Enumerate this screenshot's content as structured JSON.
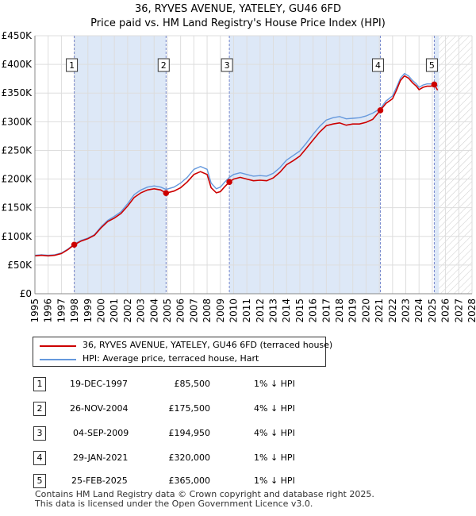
{
  "title": {
    "line1": "36, RYVES AVENUE, YATELEY, GU46 6FD",
    "line2": "Price paid vs. HM Land Registry's House Price Index (HPI)"
  },
  "colors": {
    "price_line": "#cc0000",
    "hpi_line": "#6699dd",
    "marker": "#cc0000",
    "highlight": "#dde8f7",
    "grid": "#dddddd",
    "sale_vline": "#7788cc"
  },
  "legend": {
    "price_label": "36, RYVES AVENUE, YATELEY, GU46 6FD (terraced house)",
    "hpi_label": "HPI: Average price, terraced house, Hart"
  },
  "sales": [
    {
      "num": "1",
      "date": "19-DEC-1997",
      "price": "£85,500",
      "hpi": "1% ↓ HPI"
    },
    {
      "num": "2",
      "date": "26-NOV-2004",
      "price": "£175,500",
      "hpi": "4% ↓ HPI"
    },
    {
      "num": "3",
      "date": "04-SEP-2009",
      "price": "£194,950",
      "hpi": "4% ↓ HPI"
    },
    {
      "num": "4",
      "date": "29-JAN-2021",
      "price": "£320,000",
      "hpi": "1% ↓ HPI"
    },
    {
      "num": "5",
      "date": "25-FEB-2025",
      "price": "£365,000",
      "hpi": "1% ↓ HPI"
    }
  ],
  "footer": {
    "line1": "Contains HM Land Registry data © Crown copyright and database right 2025.",
    "line2": "This data is licensed under the Open Government Licence v3.0."
  },
  "chart_data": {
    "type": "line",
    "title": "Price paid vs. HM Land Registry's House Price Index (HPI)",
    "xlabel": "",
    "ylabel": "",
    "xlim": [
      1995,
      2028
    ],
    "ylim": [
      0,
      450000
    ],
    "x_ticks": [
      "1995",
      "1996",
      "1997",
      "1998",
      "1999",
      "2000",
      "2001",
      "2002",
      "2003",
      "2004",
      "2005",
      "2006",
      "2007",
      "2008",
      "2009",
      "2010",
      "2011",
      "2012",
      "2013",
      "2014",
      "2015",
      "2016",
      "2017",
      "2018",
      "2019",
      "2020",
      "2021",
      "2022",
      "2023",
      "2024",
      "2025",
      "2026",
      "2027",
      "2028"
    ],
    "y_ticks": [
      {
        "value": 0,
        "label": "£0"
      },
      {
        "value": 50000,
        "label": "£50K"
      },
      {
        "value": 100000,
        "label": "£100K"
      },
      {
        "value": 150000,
        "label": "£150K"
      },
      {
        "value": 200000,
        "label": "£200K"
      },
      {
        "value": 250000,
        "label": "£250K"
      },
      {
        "value": 300000,
        "label": "£300K"
      },
      {
        "value": 350000,
        "label": "£350K"
      },
      {
        "value": 400000,
        "label": "£400K"
      },
      {
        "value": 450000,
        "label": "£450K"
      }
    ],
    "grid": true,
    "hatched_from": 2025.5,
    "sale_markers": [
      {
        "label": "1",
        "x": 1997.97,
        "y": 85500
      },
      {
        "label": "2",
        "x": 2004.9,
        "y": 175500
      },
      {
        "label": "3",
        "x": 2009.68,
        "y": 194950
      },
      {
        "label": "4",
        "x": 2021.08,
        "y": 320000
      },
      {
        "label": "5",
        "x": 2025.15,
        "y": 365000
      }
    ],
    "series": [
      {
        "name": "36, RYVES AVENUE, YATELEY, GU46 6FD (terraced house)",
        "x": [
          1995,
          1995.5,
          1996,
          1996.5,
          1997,
          1997.5,
          1997.97,
          1998.5,
          1999,
          1999.5,
          2000,
          2000.5,
          2001,
          2001.5,
          2002,
          2002.5,
          2003,
          2003.5,
          2004,
          2004.5,
          2004.9,
          2005.5,
          2006,
          2006.5,
          2007,
          2007.5,
          2008,
          2008.3,
          2008.7,
          2009,
          2009.3,
          2009.68,
          2010,
          2010.5,
          2011,
          2011.5,
          2012,
          2012.5,
          2013,
          2013.5,
          2014,
          2014.5,
          2015,
          2015.5,
          2016,
          2016.5,
          2017,
          2017.5,
          2018,
          2018.5,
          2019,
          2019.5,
          2020,
          2020.5,
          2021.08,
          2021.5,
          2022,
          2022.3,
          2022.6,
          2022.9,
          2023.2,
          2023.5,
          2023.8,
          2024,
          2024.3,
          2024.6,
          2024.9,
          2025.15,
          2025.4
        ],
        "y": [
          66000,
          67000,
          66000,
          67000,
          70000,
          77000,
          85500,
          92000,
          96000,
          102000,
          115000,
          126000,
          132000,
          140000,
          153000,
          168000,
          176000,
          181000,
          183000,
          181000,
          175500,
          179000,
          185000,
          195000,
          208000,
          213000,
          208000,
          185000,
          176000,
          178000,
          186000,
          194950,
          200000,
          203000,
          200000,
          197000,
          198000,
          197000,
          202000,
          212000,
          225000,
          232000,
          240000,
          254000,
          268000,
          282000,
          293000,
          296000,
          298000,
          294000,
          296000,
          296000,
          299000,
          304000,
          320000,
          332000,
          340000,
          355000,
          372000,
          380000,
          376000,
          368000,
          362000,
          356000,
          360000,
          362000,
          362000,
          365000,
          355000
        ]
      },
      {
        "name": "HPI: Average price, terraced house, Hart",
        "x": [
          1995,
          1995.5,
          1996,
          1996.5,
          1997,
          1997.5,
          1997.97,
          1998.5,
          1999,
          1999.5,
          2000,
          2000.5,
          2001,
          2001.5,
          2002,
          2002.5,
          2003,
          2003.5,
          2004,
          2004.5,
          2004.9,
          2005.5,
          2006,
          2006.5,
          2007,
          2007.5,
          2008,
          2008.3,
          2008.7,
          2009,
          2009.3,
          2009.68,
          2010,
          2010.5,
          2011,
          2011.5,
          2012,
          2012.5,
          2013,
          2013.5,
          2014,
          2014.5,
          2015,
          2015.5,
          2016,
          2016.5,
          2017,
          2017.5,
          2018,
          2018.5,
          2019,
          2019.5,
          2020,
          2020.5,
          2021.08,
          2021.5,
          2022,
          2022.3,
          2022.6,
          2022.9,
          2023.2,
          2023.5,
          2023.8,
          2024,
          2024.3,
          2024.6,
          2024.9,
          2025.15,
          2025.4
        ],
        "y": [
          67000,
          68000,
          67000,
          68000,
          71000,
          78000,
          86500,
          93000,
          97000,
          103000,
          117000,
          128000,
          135000,
          143000,
          157000,
          173000,
          181000,
          186000,
          188000,
          186000,
          182000,
          186000,
          193000,
          203000,
          217000,
          222000,
          217000,
          193000,
          183000,
          186000,
          194000,
          203000,
          208000,
          211000,
          208000,
          205000,
          206000,
          205000,
          210000,
          220000,
          233000,
          241000,
          249000,
          263000,
          278000,
          292000,
          303000,
          307000,
          309000,
          305000,
          306000,
          307000,
          310000,
          315000,
          323000,
          336000,
          345000,
          360000,
          376000,
          384000,
          380000,
          372000,
          366000,
          360000,
          364000,
          366000,
          366000,
          369000,
          362000
        ]
      }
    ]
  }
}
